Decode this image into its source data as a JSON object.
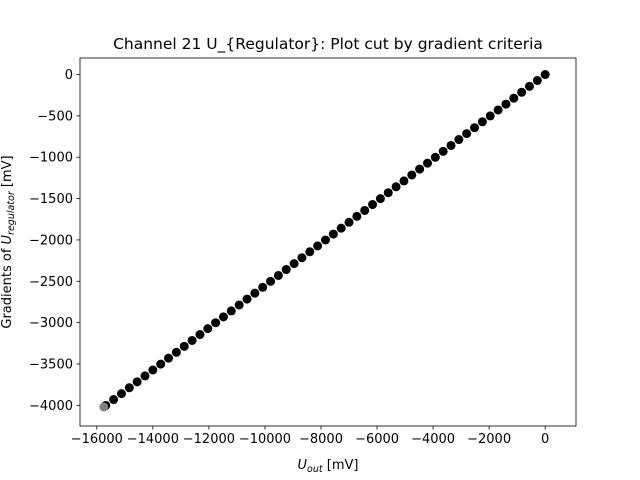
{
  "chart_data": {
    "type": "scatter",
    "title": "Channel 21 U_{Regulator}: Plot cut by gradient criteria",
    "xlabel": {
      "base": "U",
      "sub": "out",
      "unit": " [mV]"
    },
    "ylabel": {
      "prefix": "Gradients of ",
      "base": "U",
      "sub": "regulator",
      "unit": " [mV]"
    },
    "xlim": [
      -16600,
      1100
    ],
    "ylim": [
      -4250,
      200
    ],
    "xticks": [
      -16000,
      -14000,
      -12000,
      -10000,
      -8000,
      -6000,
      -4000,
      -2000,
      0
    ],
    "yticks": [
      -4000,
      -3500,
      -3000,
      -2500,
      -2000,
      -1500,
      -1000,
      -500,
      0
    ],
    "grid": false,
    "colors": {
      "points": "#000000",
      "cut_point": "#808080"
    },
    "series": [
      {
        "name": "",
        "x_start": 0,
        "x_step": -280,
        "count": 57,
        "slope": 0.2552
      },
      {
        "name": "",
        "x": [
          -15750
        ],
        "y": [
          -4020
        ]
      }
    ]
  }
}
